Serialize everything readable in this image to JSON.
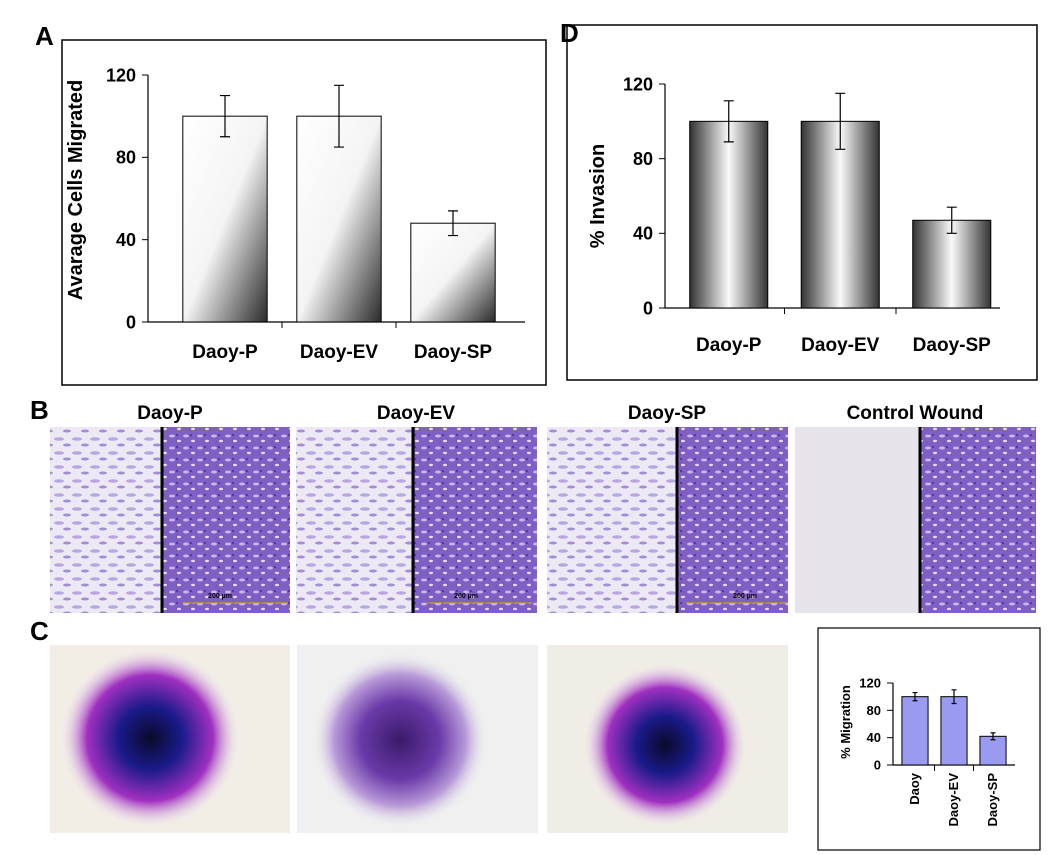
{
  "chart_data": [
    {
      "type": "bar",
      "panel": "A",
      "ylabel": "Avarage Cells Migrated",
      "categories": [
        "Daoy-P",
        "Daoy-EV",
        "Daoy-SP"
      ],
      "values": [
        100,
        100,
        48
      ],
      "errors": [
        10,
        15,
        6
      ],
      "ylim": [
        0,
        120
      ],
      "yticks": [
        0,
        40,
        80,
        120
      ]
    },
    {
      "type": "bar",
      "panel": "D",
      "ylabel": "% Invasion",
      "categories": [
        "Daoy-P",
        "Daoy-EV",
        "Daoy-SP"
      ],
      "values": [
        100,
        100,
        47
      ],
      "errors": [
        11,
        15,
        7
      ],
      "ylim": [
        0,
        120
      ],
      "yticks": [
        0,
        40,
        80,
        120
      ]
    },
    {
      "type": "bar",
      "panel": "C",
      "ylabel": "% Migration",
      "color": "#9a9af0",
      "categories": [
        "Daoy",
        "Daoy-EV",
        "Daoy-SP"
      ],
      "values": [
        100,
        100,
        42
      ],
      "errors": [
        6,
        10,
        5
      ],
      "ylim": [
        0,
        120
      ],
      "yticks": [
        0,
        40,
        80,
        120
      ]
    }
  ],
  "images": {
    "panel": "B",
    "titles": [
      "Daoy-P",
      "Daoy-EV",
      "Daoy-SP",
      "Control Wound"
    ],
    "scale_bar_label": "200 µm"
  }
}
